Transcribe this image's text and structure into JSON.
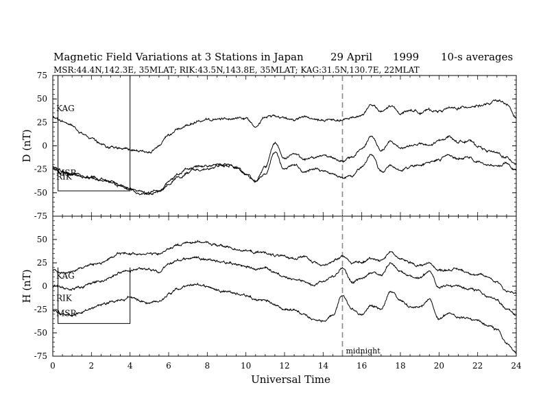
{
  "chart_data": {
    "type": "line",
    "title": "Magnetic Field Variations at 3 Stations in Japan",
    "date": "29 April",
    "year": "1999",
    "averaging": "10-s averages",
    "subtitle": "MSR:44.4N,142.3E, 35MLAT;   RIK:43.5N,143.8E, 35MLAT;   KAG:31.5N,130.7E, 22MLAT",
    "xlabel": "Universal Time",
    "xlim": [
      0,
      24
    ],
    "xticks": [
      0,
      2,
      4,
      6,
      8,
      10,
      12,
      14,
      16,
      18,
      20,
      22,
      24
    ],
    "annotation": {
      "x": 15,
      "label": "midnight"
    },
    "panels": [
      {
        "ylabel": "D (nT)",
        "ylim": [
          -75,
          75
        ],
        "yticks": [
          75,
          50,
          25,
          0,
          -25,
          -50,
          -75
        ],
        "station_labels": [
          {
            "text": "KAG",
            "y": 40
          },
          {
            "text": "MSR",
            "y": -29
          },
          {
            "text": "RIK",
            "y": -33
          }
        ],
        "series": [
          {
            "name": "KAG",
            "x": [
              0,
              0.5,
              1,
              1.5,
              2,
              2.5,
              3,
              3.5,
              4,
              4.5,
              5,
              5.5,
              6,
              6.5,
              7,
              7.5,
              8,
              8.5,
              9,
              9.5,
              10,
              10.5,
              11,
              11.5,
              12,
              12.5,
              13,
              13.5,
              14,
              14.5,
              15,
              15.5,
              16,
              16.5,
              17,
              17.5,
              18,
              18.5,
              19,
              19.5,
              20,
              20.5,
              21,
              21.5,
              22,
              22.5,
              23,
              23.5,
              24
            ],
            "values": [
              30,
              26,
              22,
              14,
              8,
              1,
              -1,
              -3,
              -4,
              -6,
              -7,
              0,
              10,
              18,
              22,
              26,
              27,
              28,
              29,
              30,
              29,
              22,
              30,
              32,
              30,
              28,
              31,
              28,
              27,
              27,
              27,
              30,
              33,
              44,
              36,
              42,
              35,
              38,
              36,
              38,
              37,
              40,
              40,
              42,
              43,
              44,
              48,
              44,
              30
            ]
          },
          {
            "name": "RIK",
            "x": [
              0,
              0.5,
              1,
              1.5,
              2,
              2.5,
              3,
              3.5,
              4,
              4.5,
              5,
              5.5,
              6,
              6.5,
              7,
              7.5,
              8,
              8.5,
              9,
              9.5,
              10,
              10.5,
              11,
              11.5,
              12,
              12.5,
              13,
              13.5,
              14,
              14.5,
              15,
              15.5,
              16,
              16.5,
              17,
              17.5,
              18,
              18.5,
              19,
              19.5,
              20,
              20.5,
              21,
              21.5,
              22,
              22.5,
              23,
              23.5,
              24
            ],
            "values": [
              -22,
              -27,
              -30,
              -32,
              -33,
              -36,
              -38,
              -42,
              -46,
              -48,
              -50,
              -47,
              -38,
              -30,
              -25,
              -22,
              -21,
              -20,
              -19,
              -22,
              -30,
              -37,
              -22,
              3,
              -13,
              -8,
              -15,
              -12,
              -10,
              -12,
              -17,
              -12,
              -3,
              10,
              -5,
              4,
              -2,
              0,
              2,
              0,
              5,
              10,
              4,
              6,
              0,
              -5,
              -8,
              -13,
              -18
            ]
          },
          {
            "name": "MSR",
            "x": [
              0,
              0.5,
              1,
              1.5,
              2,
              2.5,
              3,
              3.5,
              4,
              4.5,
              5,
              5.5,
              6,
              6.5,
              7,
              7.5,
              8,
              8.5,
              9,
              9.5,
              10,
              10.5,
              11,
              11.5,
              12,
              12.5,
              13,
              13.5,
              14,
              14.5,
              15,
              15.5,
              16,
              16.5,
              17,
              17.5,
              18,
              18.5,
              19,
              19.5,
              20,
              20.5,
              21,
              21.5,
              22,
              22.5,
              23,
              23.5,
              24
            ],
            "values": [
              -24,
              -29,
              -31,
              -33,
              -34,
              -37,
              -39,
              -43,
              -47,
              -50,
              -52,
              -50,
              -42,
              -33,
              -28,
              -25,
              -24,
              -22,
              -21,
              -23,
              -31,
              -38,
              -30,
              -7,
              -25,
              -20,
              -27,
              -25,
              -27,
              -30,
              -35,
              -33,
              -23,
              -10,
              -28,
              -20,
              -26,
              -22,
              -20,
              -18,
              -15,
              -10,
              -14,
              -13,
              -17,
              -20,
              -22,
              -18,
              -26
            ]
          }
        ]
      },
      {
        "ylabel": "H (nT)",
        "ylim": [
          -75,
          75
        ],
        "yticks": [
          50,
          25,
          0,
          -25,
          -50,
          -75
        ],
        "station_labels": [
          {
            "text": "KAG",
            "y": 11
          },
          {
            "text": "RIK",
            "y": -13
          },
          {
            "text": "MSR",
            "y": -29
          }
        ],
        "series": [
          {
            "name": "KAG",
            "x": [
              0,
              0.5,
              1,
              1.5,
              2,
              2.5,
              3,
              3.5,
              4,
              4.5,
              5,
              5.5,
              6,
              6.5,
              7,
              7.5,
              8,
              8.5,
              9,
              9.5,
              10,
              10.5,
              11,
              11.5,
              12,
              12.5,
              13,
              13.5,
              14,
              14.5,
              15,
              15.5,
              16,
              16.5,
              17,
              17.5,
              18,
              18.5,
              19,
              19.5,
              20,
              20.5,
              21,
              21.5,
              22,
              22.5,
              23,
              23.5,
              24
            ],
            "values": [
              18,
              14,
              16,
              20,
              23,
              25,
              30,
              35,
              35,
              35,
              35,
              34,
              40,
              44,
              47,
              48,
              46,
              44,
              42,
              40,
              38,
              36,
              36,
              33,
              31,
              30,
              32,
              25,
              22,
              27,
              33,
              25,
              25,
              30,
              28,
              37,
              29,
              25,
              22,
              25,
              17,
              18,
              18,
              15,
              12,
              10,
              5,
              -5,
              -8
            ]
          },
          {
            "name": "RIK",
            "x": [
              0,
              0.5,
              1,
              1.5,
              2,
              2.5,
              3,
              3.5,
              4,
              4.5,
              5,
              5.5,
              6,
              6.5,
              7,
              7.5,
              8,
              8.5,
              9,
              9.5,
              10,
              10.5,
              11,
              11.5,
              12,
              12.5,
              13,
              13.5,
              14,
              14.5,
              15,
              15.5,
              16,
              16.5,
              17,
              17.5,
              18,
              18.5,
              19,
              19.5,
              20,
              20.5,
              21,
              21.5,
              22,
              22.5,
              23,
              23.5,
              24
            ],
            "values": [
              0,
              -2,
              -3,
              -1,
              3,
              5,
              10,
              15,
              16,
              20,
              18,
              15,
              23,
              28,
              30,
              31,
              29,
              27,
              25,
              23,
              21,
              18,
              20,
              15,
              10,
              8,
              5,
              2,
              5,
              10,
              20,
              5,
              8,
              15,
              12,
              25,
              15,
              10,
              9,
              15,
              0,
              0,
              -1,
              -3,
              -5,
              -10,
              -15,
              -25,
              -32
            ]
          },
          {
            "name": "MSR",
            "x": [
              0,
              0.5,
              1,
              1.5,
              2,
              2.5,
              3,
              3.5,
              4,
              4.5,
              5,
              5.5,
              6,
              6.5,
              7,
              7.5,
              8,
              8.5,
              9,
              9.5,
              10,
              10.5,
              11,
              11.5,
              12,
              12.5,
              13,
              13.5,
              14,
              14.5,
              15,
              15.5,
              16,
              16.5,
              17,
              17.5,
              18,
              18.5,
              19,
              19.5,
              20,
              20.5,
              21,
              21.5,
              22,
              22.5,
              23,
              23.5,
              24
            ],
            "values": [
              -25,
              -30,
              -32,
              -28,
              -24,
              -20,
              -18,
              -15,
              -12,
              -15,
              -18,
              -16,
              -8,
              -3,
              0,
              2,
              0,
              -4,
              -5,
              -8,
              -10,
              -15,
              -15,
              -20,
              -25,
              -25,
              -30,
              -35,
              -38,
              -30,
              -10,
              -25,
              -30,
              -20,
              -25,
              -5,
              -15,
              -22,
              -23,
              -15,
              -35,
              -30,
              -32,
              -35,
              -38,
              -42,
              -47,
              -60,
              -72
            ]
          }
        ]
      }
    ],
    "inset_boxes": [
      {
        "panel": 0,
        "x0": 0.27,
        "x1": 4.0,
        "y0": -48,
        "y1": 75
      },
      {
        "panel": 1,
        "x0": 0.27,
        "x1": 4.0,
        "y0": -40,
        "y1": 20
      }
    ]
  }
}
